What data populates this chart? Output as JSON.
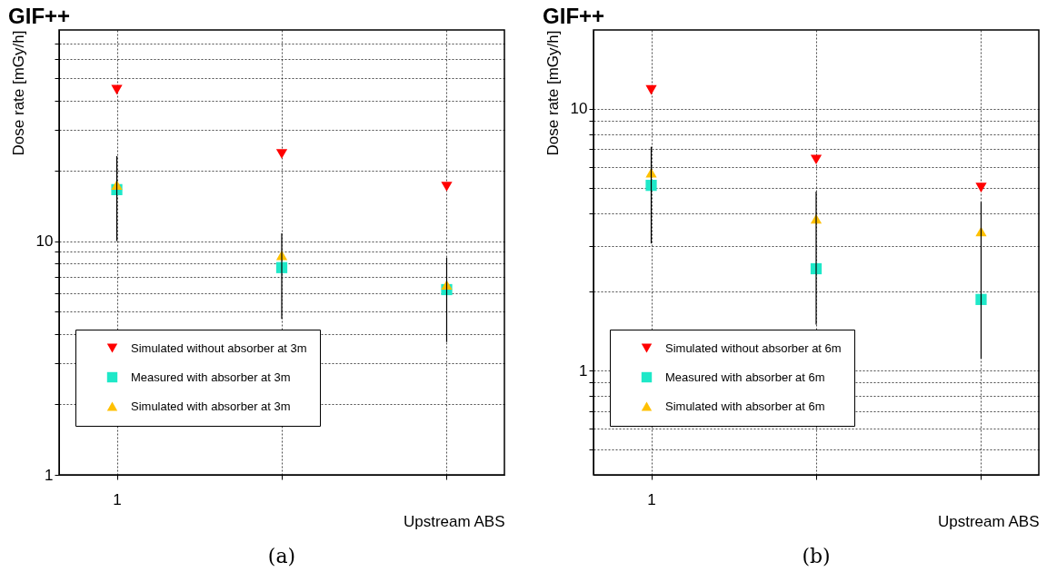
{
  "chart_data": [
    {
      "type": "scatter",
      "title": "GIF++",
      "xlabel": "Upstream ABS",
      "ylabel": "Dose rate  [mGy/h]",
      "log": true,
      "grid": true,
      "legend": "bottom left",
      "categories": [
        "1",
        null,
        null
      ],
      "ylim": [
        1,
        80
      ],
      "yticks": [
        1,
        {
          "value": 2,
          "label": null
        },
        {
          "value": 3,
          "label": null
        },
        {
          "value": 4,
          "label": null
        },
        {
          "value": 5,
          "label": null
        },
        {
          "value": 6,
          "label": null
        },
        {
          "value": 7,
          "label": null
        },
        {
          "value": 8,
          "label": null
        },
        {
          "value": 9,
          "label": null
        },
        10,
        {
          "value": 20,
          "label": null
        },
        {
          "value": 30,
          "label": null
        },
        {
          "value": 40,
          "label": null
        },
        {
          "value": 50,
          "label": null
        },
        {
          "value": 60,
          "label": null
        },
        {
          "value": 70,
          "label": null
        }
      ],
      "series": [
        {
          "name": "Simulated without absorber at 3m",
          "color": "#ff0000",
          "marker": "triangle-down",
          "values": [
            44.4,
            23.6,
            17.1
          ]
        },
        {
          "name": "Measured with absorber at 3m",
          "color": "#1ee8c8",
          "marker": "square",
          "values": [
            16.6,
            7.7,
            6.2
          ],
          "errors": [
            [
              10,
              23.1
            ],
            [
              4.65,
              10.8
            ],
            [
              3.7,
              8.5
            ]
          ]
        },
        {
          "name": "Simulated with absorber at 3m",
          "color": "#ffc000",
          "marker": "triangle",
          "values": [
            17.4,
            8.7,
            6.5
          ]
        }
      ],
      "annotations": [
        "(a)"
      ]
    },
    {
      "type": "scatter",
      "title": "GIF++",
      "xlabel": "Upstream ABS",
      "ylabel": "Dose rate  [mGy/h]",
      "log": true,
      "grid": true,
      "legend": "bottom left",
      "categories": [
        "1",
        null,
        null
      ],
      "ylim": [
        0.4,
        20
      ],
      "yticks": [
        {
          "value": 0.5,
          "label": null
        },
        {
          "value": 0.6,
          "label": null
        },
        {
          "value": 0.7,
          "label": null
        },
        {
          "value": 0.8,
          "label": null
        },
        {
          "value": 0.9,
          "label": null
        },
        1,
        {
          "value": 2,
          "label": null
        },
        {
          "value": 3,
          "label": null
        },
        {
          "value": 4,
          "label": null
        },
        {
          "value": 5,
          "label": null
        },
        {
          "value": 6,
          "label": null
        },
        {
          "value": 7,
          "label": null
        },
        {
          "value": 8,
          "label": null
        },
        {
          "value": 9,
          "label": null
        },
        10
      ],
      "series": [
        {
          "name": "Simulated without absorber at 6m",
          "color": "#ff0000",
          "marker": "triangle-down",
          "values": [
            11.8,
            6.4,
            5.0
          ]
        },
        {
          "name": "Measured with absorber at 6m",
          "color": "#1ee8c8",
          "marker": "square",
          "values": [
            5.1,
            2.45,
            1.87
          ],
          "errors": [
            [
              3.06,
              7.16
            ],
            [
              1.5,
              4.83
            ],
            [
              1.11,
              4.41
            ]
          ]
        },
        {
          "name": "Simulated with absorber at 6m",
          "color": "#ffc000",
          "marker": "triangle",
          "values": [
            5.7,
            3.8,
            3.4
          ]
        }
      ],
      "annotations": [
        "(b)"
      ]
    }
  ]
}
